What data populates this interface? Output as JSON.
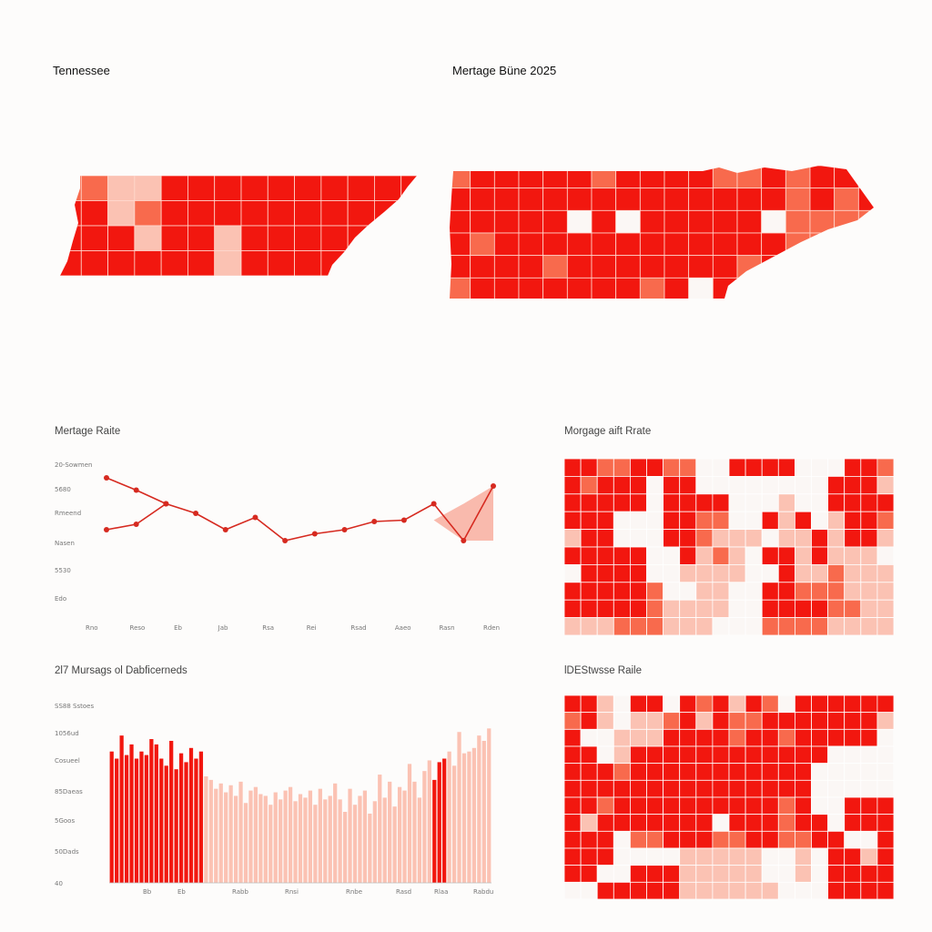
{
  "colors": {
    "dark_red": "#f2170f",
    "mid_red": "#f86a4d",
    "light_red": "#fbc2b3",
    "pale": "#fdebe4",
    "white": "#fbf7f5",
    "line_red": "#d62a20",
    "area_fill": "#f7a493"
  },
  "panels": {
    "map1": {
      "title": "Tennessee"
    },
    "map2": {
      "title": "Mertage Büne 2025"
    },
    "line": {
      "title": "Mertage Raite"
    },
    "heat1": {
      "title": "Morgage aift Rrate"
    },
    "bar": {
      "title": "2l7 Mursags ol Dabficerneds"
    },
    "heat2": {
      "title": "lDEStwsse Raile"
    }
  },
  "chart_data": [
    {
      "type": "line",
      "title": "Mertage Raite",
      "y_tick_labels": [
        "20-Sowmen",
        "5680",
        "Rmeend",
        "Nasen",
        "5530",
        "Edo"
      ],
      "x_tick_labels": [
        "Rno",
        "Reso",
        "Eb",
        "Jab",
        "Rsa",
        "Rei",
        "Rsad",
        "Aaeo",
        "Rasn",
        "Rden"
      ],
      "ylim": [
        0,
        10
      ],
      "series": [
        {
          "x": [
            0,
            1,
            2,
            3,
            4,
            5,
            6,
            7,
            8,
            9,
            10,
            11,
            12,
            13
          ],
          "values": [
            5.2,
            5.6,
            7.1,
            6.4,
            5.2,
            6.1,
            4.4,
            4.9,
            5.2,
            5.8,
            5.9,
            7.1,
            4.4,
            8.4
          ]
        },
        {
          "x": [
            0,
            1,
            2
          ],
          "values": [
            9.0,
            8.1,
            7.1
          ]
        }
      ],
      "area": {
        "x": [
          11,
          12,
          13
        ],
        "values": [
          5.9,
          7.1,
          8.4
        ]
      }
    },
    {
      "type": "bar",
      "title": "2l7 Mursags ol Dabficerneds",
      "y_tick_labels": [
        "SS88 Sstoes",
        "1056ud",
        "Cosueel",
        "85Daeas",
        "5Goos",
        "50Dads",
        "40"
      ],
      "x_tick_labels": [
        "Bb",
        "Eb",
        "Rabb",
        "Rnsi",
        "Rnbe",
        "Rasd",
        "Rlaa",
        "Rabdu"
      ],
      "ylim": [
        0,
        100
      ],
      "values": [
        74,
        70,
        83,
        72,
        78,
        70,
        74,
        72,
        81,
        78,
        70,
        66,
        80,
        64,
        73,
        68,
        76,
        70,
        74,
        60,
        58,
        53,
        56,
        51,
        55,
        49,
        57,
        45,
        52,
        54,
        50,
        49,
        44,
        51,
        47,
        52,
        54,
        46,
        50,
        48,
        52,
        44,
        53,
        47,
        49,
        56,
        47,
        40,
        53,
        44,
        49,
        52,
        39,
        46,
        61,
        48,
        57,
        43,
        54,
        52,
        67,
        57,
        48,
        63,
        69,
        58,
        68,
        70,
        74,
        66,
        85,
        73,
        74,
        76,
        83,
        80,
        87
      ],
      "bar_color_levels": [
        3,
        3,
        3,
        3,
        3,
        3,
        3,
        3,
        3,
        3,
        3,
        3,
        3,
        3,
        3,
        3,
        3,
        3,
        3,
        1,
        1,
        1,
        1,
        1,
        1,
        1,
        1,
        1,
        1,
        1,
        1,
        1,
        1,
        1,
        1,
        1,
        1,
        1,
        1,
        1,
        1,
        1,
        1,
        1,
        1,
        1,
        1,
        1,
        1,
        1,
        1,
        1,
        1,
        1,
        1,
        1,
        1,
        1,
        1,
        1,
        1,
        1,
        1,
        1,
        1,
        3,
        3,
        3,
        1,
        1,
        1,
        1,
        1,
        1,
        1,
        1,
        1
      ]
    },
    {
      "type": "heatmap",
      "title": "Morgage aift Rrate",
      "rows": [
        [
          3,
          3,
          2,
          2,
          3,
          3,
          2,
          2,
          0,
          0,
          3,
          3,
          3,
          3,
          0,
          0,
          0,
          3,
          3,
          2
        ],
        [
          3,
          2,
          3,
          3,
          3,
          0,
          3,
          3,
          0,
          0,
          0,
          0,
          0,
          0,
          0,
          0,
          3,
          3,
          3,
          1
        ],
        [
          3,
          3,
          3,
          3,
          3,
          0,
          3,
          3,
          3,
          3,
          0,
          0,
          0,
          1,
          0,
          0,
          3,
          3,
          3,
          3
        ],
        [
          3,
          3,
          3,
          0,
          0,
          0,
          3,
          3,
          2,
          2,
          0,
          0,
          3,
          1,
          3,
          0,
          1,
          3,
          3,
          2
        ],
        [
          1,
          3,
          3,
          0,
          0,
          0,
          3,
          3,
          2,
          1,
          1,
          1,
          0,
          1,
          1,
          3,
          1,
          3,
          3,
          1
        ],
        [
          3,
          3,
          3,
          3,
          3,
          0,
          0,
          3,
          1,
          2,
          1,
          0,
          3,
          3,
          1,
          3,
          1,
          1,
          1,
          0
        ],
        [
          0,
          3,
          3,
          3,
          3,
          0,
          0,
          1,
          1,
          1,
          1,
          0,
          0,
          3,
          1,
          1,
          2,
          1,
          1,
          1
        ],
        [
          3,
          3,
          3,
          3,
          3,
          2,
          0,
          0,
          1,
          1,
          0,
          0,
          3,
          3,
          2,
          2,
          2,
          1,
          1,
          1
        ],
        [
          3,
          3,
          3,
          3,
          3,
          2,
          1,
          1,
          1,
          1,
          0,
          0,
          3,
          3,
          3,
          3,
          2,
          2,
          1,
          1
        ],
        [
          1,
          1,
          1,
          2,
          2,
          2,
          1,
          1,
          1,
          0,
          0,
          0,
          2,
          2,
          2,
          2,
          1,
          1,
          1,
          1
        ]
      ]
    },
    {
      "type": "heatmap",
      "title": "lDEStwsse Raile",
      "rows": [
        [
          3,
          3,
          1,
          0,
          3,
          3,
          0,
          3,
          2,
          3,
          1,
          3,
          2,
          0,
          3,
          3,
          3,
          3,
          3,
          3
        ],
        [
          2,
          3,
          1,
          0,
          1,
          1,
          2,
          3,
          1,
          3,
          2,
          2,
          3,
          3,
          3,
          3,
          3,
          3,
          3,
          1
        ],
        [
          3,
          0,
          0,
          1,
          1,
          1,
          3,
          3,
          3,
          3,
          2,
          3,
          3,
          2,
          3,
          3,
          3,
          3,
          3,
          0
        ],
        [
          3,
          3,
          0,
          1,
          3,
          3,
          3,
          3,
          3,
          3,
          3,
          3,
          3,
          3,
          3,
          3,
          0,
          0,
          0,
          0
        ],
        [
          3,
          3,
          3,
          2,
          3,
          3,
          3,
          3,
          3,
          3,
          3,
          3,
          3,
          3,
          3,
          0,
          0,
          0,
          0,
          0
        ],
        [
          3,
          3,
          3,
          3,
          3,
          3,
          3,
          3,
          3,
          3,
          3,
          3,
          3,
          3,
          3,
          0,
          0,
          0,
          0,
          0
        ],
        [
          3,
          3,
          2,
          3,
          3,
          3,
          3,
          3,
          3,
          3,
          3,
          3,
          3,
          2,
          3,
          0,
          0,
          3,
          3,
          3
        ],
        [
          3,
          1,
          3,
          3,
          3,
          3,
          3,
          3,
          3,
          0,
          3,
          3,
          3,
          2,
          3,
          3,
          0,
          3,
          3,
          3
        ],
        [
          3,
          3,
          3,
          0,
          2,
          2,
          3,
          3,
          3,
          2,
          2,
          3,
          3,
          2,
          2,
          3,
          3,
          0,
          0,
          3
        ],
        [
          3,
          3,
          3,
          0,
          0,
          0,
          0,
          1,
          1,
          1,
          1,
          1,
          0,
          0,
          1,
          0,
          3,
          3,
          1,
          3
        ],
        [
          3,
          3,
          0,
          0,
          3,
          3,
          3,
          1,
          1,
          1,
          1,
          1,
          0,
          0,
          1,
          0,
          3,
          3,
          3,
          3
        ],
        [
          0,
          0,
          3,
          3,
          3,
          3,
          3,
          1,
          1,
          1,
          1,
          1,
          1,
          0,
          0,
          0,
          3,
          3,
          3,
          3
        ]
      ]
    },
    {
      "type": "heatmap",
      "title": "Tennessee",
      "rows": [
        [
          2,
          2,
          1,
          1,
          3,
          3,
          3,
          3,
          3,
          3,
          3,
          3,
          3,
          3
        ],
        [
          3,
          3,
          1,
          2,
          3,
          3,
          3,
          3,
          3,
          3,
          3,
          3,
          3,
          3
        ],
        [
          3,
          3,
          3,
          1,
          3,
          3,
          1,
          3,
          3,
          3,
          3,
          3,
          3,
          3
        ],
        [
          3,
          3,
          3,
          3,
          3,
          3,
          1,
          3,
          3,
          3,
          3,
          3,
          3,
          3
        ]
      ]
    },
    {
      "type": "heatmap",
      "title": "Mertage Büne 2025",
      "rows": [
        [
          2,
          3,
          3,
          3,
          3,
          3,
          2,
          3,
          3,
          3,
          3,
          2,
          2,
          3,
          2,
          3,
          3,
          3
        ],
        [
          3,
          3,
          3,
          3,
          3,
          3,
          3,
          3,
          3,
          3,
          3,
          3,
          3,
          3,
          2,
          3,
          2,
          3
        ],
        [
          3,
          3,
          3,
          3,
          3,
          0,
          3,
          0,
          3,
          3,
          3,
          3,
          3,
          0,
          2,
          2,
          2,
          2
        ],
        [
          3,
          2,
          3,
          3,
          3,
          3,
          3,
          3,
          3,
          3,
          3,
          3,
          3,
          3,
          2,
          2,
          2,
          1
        ],
        [
          3,
          3,
          3,
          3,
          2,
          3,
          3,
          3,
          3,
          3,
          3,
          3,
          2,
          3,
          2,
          2,
          1,
          1
        ],
        [
          2,
          3,
          3,
          3,
          3,
          3,
          3,
          3,
          2,
          3,
          0,
          3,
          3,
          3,
          2,
          1,
          1,
          1
        ]
      ]
    }
  ]
}
